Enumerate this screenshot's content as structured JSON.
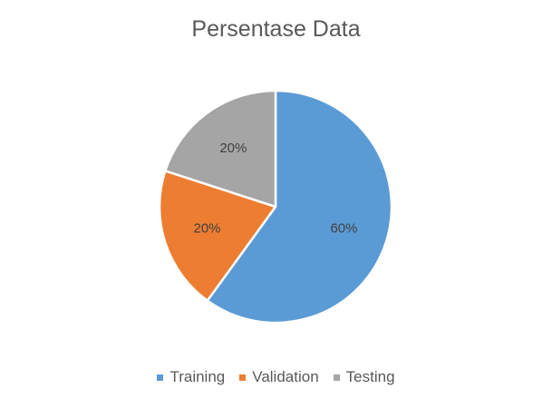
{
  "chart_data": {
    "type": "pie",
    "title": "Persentase Data",
    "categories": [
      "Training",
      "Validation",
      "Testing"
    ],
    "values": [
      60,
      20,
      20
    ],
    "labels": [
      "60%",
      "20%",
      "20%"
    ],
    "colors": [
      "#5B9BD5",
      "#ED7D31",
      "#A5A5A5"
    ],
    "legend_position": "bottom",
    "start_angle": "top",
    "direction": "clockwise"
  }
}
